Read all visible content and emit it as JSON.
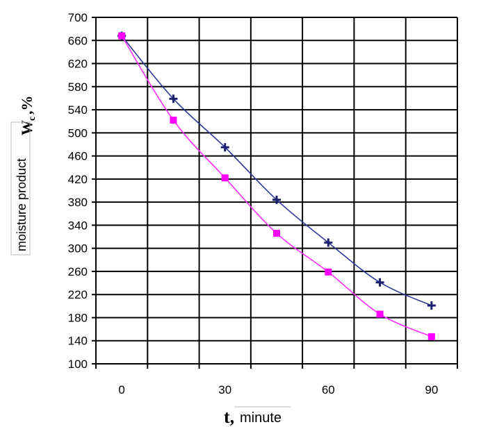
{
  "chart_data": {
    "type": "line",
    "xlabel": {
      "var": "t,",
      "unit": "minute"
    },
    "ylabel": {
      "var": "W",
      "sub": "c",
      "unit": ",%",
      "text": "moisture product"
    },
    "ylim": [
      100,
      700
    ],
    "xlim": [
      -7.5,
      97.5
    ],
    "yticks": [
      "100",
      "140",
      "180",
      "220",
      "260",
      "300",
      "340",
      "380",
      "420",
      "460",
      "500",
      "540",
      "580",
      "620",
      "660",
      "700"
    ],
    "xticks": [
      {
        "value": 0,
        "label": "0"
      },
      {
        "value": 30,
        "label": "30"
      },
      {
        "value": 60,
        "label": "60"
      },
      {
        "value": 90,
        "label": "90"
      }
    ],
    "x_gridlines": [
      -7.5,
      7.5,
      22.5,
      37.5,
      52.5,
      67.5,
      82.5,
      97.5
    ],
    "grid": true,
    "series": [
      {
        "marker": "plus",
        "color": "#1a1f6e",
        "line_color": "#2f3a96",
        "points": [
          [
            0,
            668
          ],
          [
            15,
            559
          ],
          [
            30,
            475
          ],
          [
            45,
            384
          ],
          [
            60,
            310
          ],
          [
            75,
            241
          ],
          [
            90,
            201
          ]
        ]
      },
      {
        "marker": "square",
        "color": "#ff00ff",
        "line_color": "#ff2dff",
        "points": [
          [
            0,
            668
          ],
          [
            15,
            522
          ],
          [
            30,
            422
          ],
          [
            45,
            326
          ],
          [
            60,
            259
          ],
          [
            75,
            186
          ],
          [
            90,
            147
          ]
        ]
      }
    ]
  }
}
